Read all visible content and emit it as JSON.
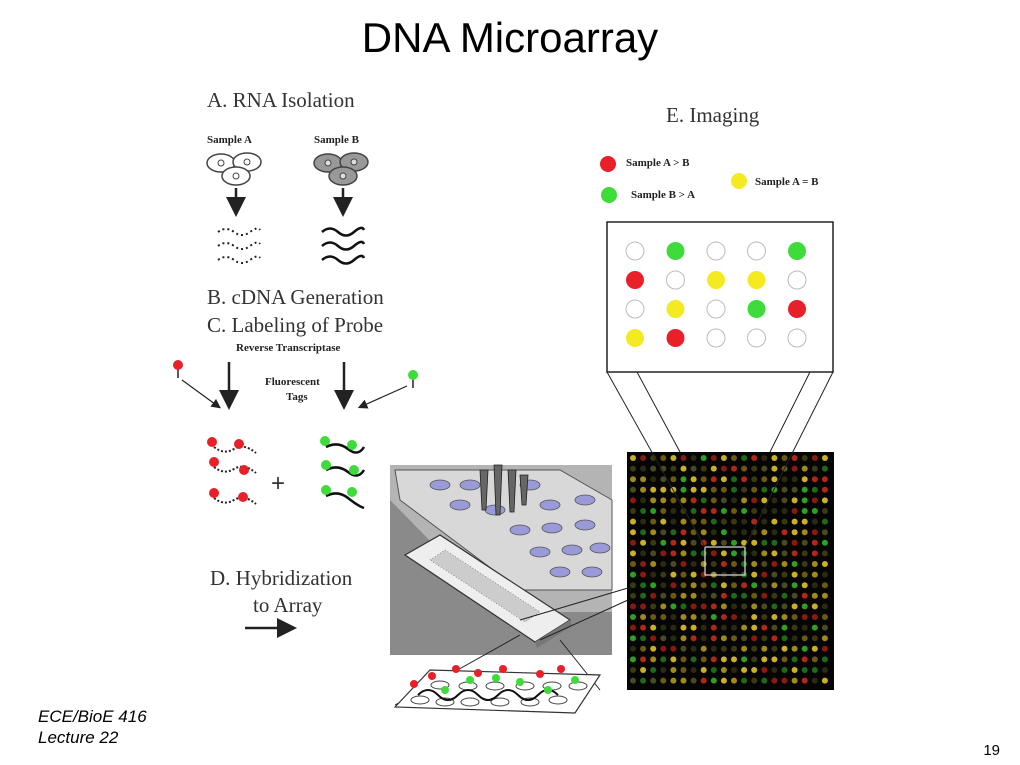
{
  "slide": {
    "title": "DNA Microarray",
    "course_line1": "ECE/BioE 416",
    "course_line2": "Lecture 22",
    "page_number": "19"
  },
  "steps": {
    "a": "A.  RNA Isolation",
    "b": "B. cDNA Generation",
    "c": "C. Labeling of Probe",
    "d_line1": "D. Hybridization",
    "d_line2": "to Array",
    "e": "E.  Imaging"
  },
  "labels": {
    "sample_a": "Sample A",
    "sample_b": "Sample B",
    "reverse_transcriptase": "Reverse Transcriptase",
    "fluorescent": "Fluorescent",
    "tags": "Tags",
    "plus": "+"
  },
  "legend": {
    "red": "Sample A > B",
    "green": "Sample B > A",
    "yellow": "Sample A = B"
  },
  "colors": {
    "red": "#e8202a",
    "green": "#3ddc3a",
    "yellow": "#f3ea22",
    "empty": "#ffffff"
  },
  "imaging_grid": [
    [
      "empty",
      "green",
      "empty",
      "empty",
      "green"
    ],
    [
      "red",
      "empty",
      "yellow",
      "yellow",
      "empty"
    ],
    [
      "empty",
      "yellow",
      "empty",
      "green",
      "red"
    ],
    [
      "yellow",
      "red",
      "empty",
      "empty",
      "empty"
    ]
  ]
}
